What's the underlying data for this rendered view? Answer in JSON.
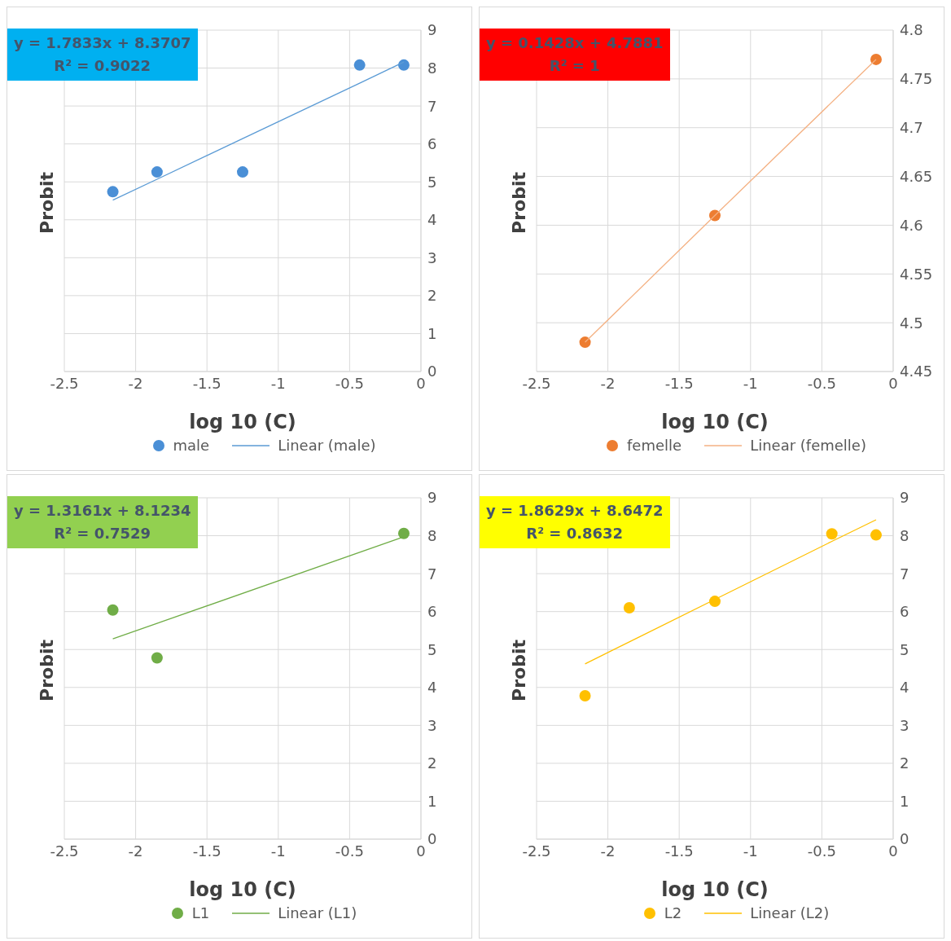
{
  "chart_data": [
    {
      "type": "scatter",
      "xlabel": "log 10 (C)",
      "ylabel": "Probit",
      "xlim": [
        -2.5,
        0
      ],
      "xticks": [
        -2.5,
        -2,
        -1.5,
        -1,
        -0.5,
        0
      ],
      "ylim": [
        0,
        9
      ],
      "yticks": [
        0,
        1,
        2,
        3,
        4,
        5,
        6,
        7,
        8,
        9
      ],
      "grid": true,
      "legend": "bottom",
      "annotations": [
        "y = 1.7833x + 8.3707",
        "R² = 0.9022"
      ],
      "x": [
        -2.16,
        -1.85,
        -1.25,
        -0.43,
        -0.12
      ],
      "series": [
        {
          "name": "male",
          "color": "#4a8fd6",
          "marker": "circle",
          "values": [
            4.74,
            5.26,
            5.26,
            8.08,
            8.08
          ]
        },
        {
          "name": "Linear (male)",
          "type": "line",
          "color": "#5b9bd5",
          "marker": "none",
          "values": [
            4.52,
            5.07,
            6.14,
            7.6,
            8.16
          ]
        }
      ]
    },
    {
      "type": "scatter",
      "xlabel": "log 10 (C)",
      "ylabel": "Probit",
      "xlim": [
        -2.5,
        0
      ],
      "xticks": [
        -2.5,
        -2,
        -1.5,
        -1,
        -0.5,
        0
      ],
      "ylim": [
        4.45,
        4.8
      ],
      "yticks": [
        4.45,
        4.5,
        4.55,
        4.6,
        4.65,
        4.7,
        4.75,
        4.8
      ],
      "grid": true,
      "legend": "bottom",
      "annotations": [
        "y = 0.1428x + 4.7881",
        "R² = 1"
      ],
      "x": [
        -2.16,
        -1.25,
        -0.12
      ],
      "series": [
        {
          "name": "femelle",
          "color": "#ed7d31",
          "marker": "circle",
          "values": [
            4.48,
            4.61,
            4.77
          ]
        },
        {
          "name": "Linear (femelle)",
          "type": "line",
          "color": "#f4b183",
          "marker": "none",
          "values": [
            4.48,
            4.61,
            4.77
          ]
        }
      ]
    },
    {
      "type": "scatter",
      "xlabel": "log 10 (C)",
      "ylabel": "Probit",
      "xlim": [
        -2.5,
        0
      ],
      "xticks": [
        -2.5,
        -2,
        -1.5,
        -1,
        -0.5,
        0
      ],
      "ylim": [
        0,
        9
      ],
      "yticks": [
        0,
        1,
        2,
        3,
        4,
        5,
        6,
        7,
        8,
        9
      ],
      "grid": true,
      "legend": "bottom",
      "annotations": [
        "y = 1.3161x + 8.1234",
        "R² = 0.7529"
      ],
      "x": [
        -2.16,
        -1.85,
        -0.12
      ],
      "series": [
        {
          "name": "L1",
          "color": "#70ad47",
          "marker": "circle",
          "values": [
            6.04,
            4.78,
            8.06
          ]
        },
        {
          "name": "Linear (L1)",
          "type": "line",
          "color": "#70ad47",
          "marker": "none",
          "values": [
            5.28,
            5.69,
            7.97
          ]
        }
      ]
    },
    {
      "type": "scatter",
      "xlabel": "log 10 (C)",
      "ylabel": "Probit",
      "xlim": [
        -2.5,
        0
      ],
      "xticks": [
        -2.5,
        -2,
        -1.5,
        -1,
        -0.5,
        0
      ],
      "ylim": [
        0,
        9
      ],
      "yticks": [
        0,
        1,
        2,
        3,
        4,
        5,
        6,
        7,
        8,
        9
      ],
      "grid": true,
      "legend": "bottom",
      "annotations": [
        "y = 1.8629x + 8.6472",
        "R² = 0.8632"
      ],
      "x": [
        -2.16,
        -1.85,
        -1.25,
        -0.43,
        -0.12
      ],
      "series": [
        {
          "name": "L2",
          "color": "#ffc000",
          "marker": "circle",
          "values": [
            3.78,
            6.1,
            6.27,
            8.05,
            8.02
          ]
        },
        {
          "name": "Linear (L2)",
          "type": "line",
          "color": "#ffc000",
          "marker": "none",
          "values": [
            4.62,
            5.2,
            6.32,
            7.85,
            8.42
          ]
        }
      ]
    }
  ]
}
